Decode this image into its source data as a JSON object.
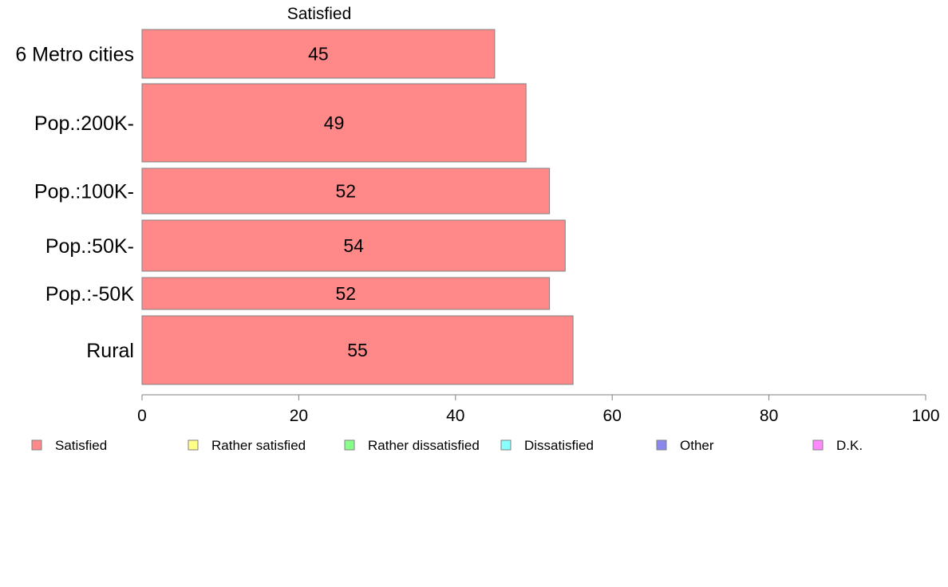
{
  "chart_data": {
    "type": "bar",
    "orientation": "horizontal",
    "title": "Satisfied",
    "categories": [
      "6 Metro cities",
      "Pop.:200K-",
      "Pop.:100K-",
      "Pop.:50K-",
      "Pop.:-50K",
      "Rural"
    ],
    "series": [
      {
        "name": "Satisfied",
        "values": [
          45,
          49,
          52,
          54,
          52,
          55
        ],
        "color": "#ff8888"
      }
    ],
    "xlim": [
      0,
      100
    ],
    "xticks": [
      0,
      20,
      40,
      60,
      80,
      100
    ],
    "grid": false,
    "legend_position": "bottom",
    "legend": [
      {
        "label": "Satisfied",
        "color": "#ff8888"
      },
      {
        "label": "Rather satisfied",
        "color": "#ffff88"
      },
      {
        "label": "Rather dissatisfied",
        "color": "#88ff88"
      },
      {
        "label": "Dissatisfied",
        "color": "#88ffff"
      },
      {
        "label": "Other",
        "color": "#8888ee"
      },
      {
        "label": "D.K.",
        "color": "#ff88ff"
      }
    ]
  }
}
